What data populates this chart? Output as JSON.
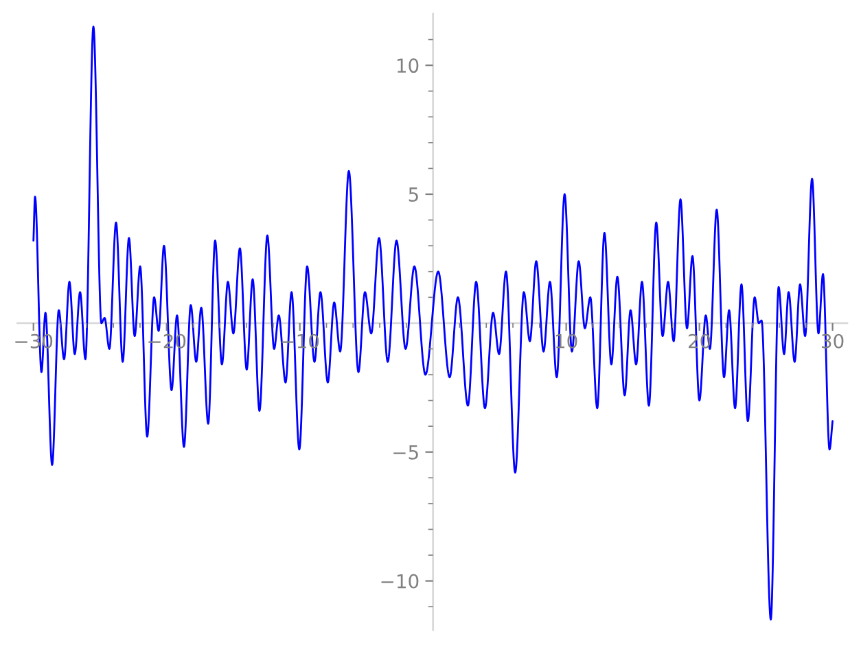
{
  "chart_data": {
    "type": "line",
    "color": "#0000ff",
    "line_style": "solid",
    "marker": "none",
    "grid": false,
    "legend": false,
    "x": [
      -30.0,
      -29.88,
      -29.4,
      -29.1,
      -28.6,
      -28.1,
      -27.7,
      -27.3,
      -26.9,
      -26.5,
      -26.1,
      -25.5,
      -24.9,
      -24.66,
      -24.3,
      -23.8,
      -23.3,
      -22.83,
      -22.4,
      -21.99,
      -21.46,
      -20.94,
      -20.6,
      -20.2,
      -19.63,
      -19.22,
      -18.7,
      -18.19,
      -17.78,
      -17.4,
      -16.88,
      -16.36,
      -15.85,
      -15.4,
      -14.99,
      -14.5,
      -13.99,
      -13.54,
      -13.03,
      -12.44,
      -11.93,
      -11.58,
      -11.07,
      -10.62,
      -10.04,
      -9.45,
      -8.9,
      -8.45,
      -7.9,
      -7.42,
      -6.97,
      -6.32,
      -5.6,
      -5.11,
      -4.64,
      -4.05,
      -3.4,
      -2.74,
      -2.06,
      -1.4,
      -0.57,
      0.39,
      1.25,
      1.87,
      2.62,
      3.24,
      3.9,
      4.51,
      4.96,
      5.48,
      6.17,
      6.82,
      7.27,
      7.75,
      8.3,
      8.78,
      9.29,
      9.88,
      10.43,
      10.94,
      11.4,
      11.81,
      12.33,
      12.87,
      13.39,
      13.84,
      14.39,
      14.83,
      15.25,
      15.69,
      16.21,
      16.76,
      17.24,
      17.65,
      18.07,
      18.58,
      19.07,
      19.48,
      20.0,
      20.48,
      20.79,
      21.3,
      21.85,
      22.23,
      22.68,
      23.16,
      23.64,
      24.15,
      24.46,
      24.67,
      25.36,
      25.95,
      26.36,
      26.7,
      27.15,
      27.56,
      27.94,
      28.46,
      28.94,
      29.28,
      29.77,
      30.0
    ],
    "values": [
      3.2,
      4.9,
      -1.9,
      0.4,
      -5.5,
      0.5,
      -1.4,
      1.6,
      -1.2,
      1.2,
      -1.4,
      11.5,
      0.0,
      0.2,
      -1.0,
      3.9,
      -1.5,
      3.3,
      -0.5,
      2.2,
      -4.4,
      1.0,
      -0.3,
      3.0,
      -2.6,
      0.3,
      -4.8,
      0.7,
      -1.5,
      0.6,
      -3.9,
      3.2,
      -1.6,
      1.6,
      -0.4,
      2.9,
      -1.8,
      1.7,
      -3.4,
      3.4,
      -1.0,
      0.3,
      -2.3,
      1.2,
      -4.9,
      2.2,
      -1.5,
      1.2,
      -2.3,
      0.8,
      -1.1,
      5.9,
      -1.9,
      1.2,
      -0.4,
      3.3,
      -1.5,
      3.2,
      -1.0,
      2.2,
      -2.0,
      2.0,
      -2.1,
      1.0,
      -3.2,
      1.6,
      -3.3,
      0.4,
      -1.2,
      2.0,
      -5.8,
      1.2,
      -0.7,
      2.4,
      -1.1,
      1.6,
      -2.1,
      5.0,
      -1.1,
      2.4,
      -0.2,
      1.0,
      -3.3,
      3.5,
      -1.6,
      1.8,
      -2.8,
      0.5,
      -1.6,
      1.6,
      -3.2,
      3.9,
      -0.5,
      1.6,
      -0.7,
      4.8,
      -0.2,
      2.6,
      -3.0,
      0.3,
      -1.0,
      4.4,
      -2.1,
      0.5,
      -3.3,
      1.5,
      -3.8,
      1.0,
      0.0,
      0.1,
      -11.5,
      1.4,
      -1.2,
      1.2,
      -1.5,
      1.5,
      -0.5,
      5.6,
      -0.4,
      1.9,
      -4.9,
      -3.8
    ],
    "xlim": [
      -31.2,
      31.1
    ],
    "ylim": [
      -11.9,
      12.0
    ],
    "xticks": [
      {
        "value": -30,
        "label": "−30"
      },
      {
        "value": -28,
        "label": null
      },
      {
        "value": -26,
        "label": null
      },
      {
        "value": -24,
        "label": null
      },
      {
        "value": -22,
        "label": null
      },
      {
        "value": -20,
        "label": "−20"
      },
      {
        "value": -18,
        "label": null
      },
      {
        "value": -16,
        "label": null
      },
      {
        "value": -14,
        "label": null
      },
      {
        "value": -12,
        "label": null
      },
      {
        "value": -10,
        "label": "−10"
      },
      {
        "value": -8,
        "label": null
      },
      {
        "value": -6,
        "label": null
      },
      {
        "value": -4,
        "label": null
      },
      {
        "value": -2,
        "label": null
      },
      {
        "value": 2,
        "label": null
      },
      {
        "value": 4,
        "label": null
      },
      {
        "value": 6,
        "label": null
      },
      {
        "value": 8,
        "label": null
      },
      10,
      {
        "value": 12,
        "label": null
      },
      {
        "value": 14,
        "label": null
      },
      {
        "value": 16,
        "label": null
      },
      {
        "value": 18,
        "label": null
      },
      20,
      {
        "value": 22,
        "label": null
      },
      {
        "value": 24,
        "label": null
      },
      {
        "value": 26,
        "label": null
      },
      {
        "value": 28,
        "label": null
      },
      30
    ],
    "yticks": [
      {
        "value": -11,
        "label": null
      },
      {
        "value": -10,
        "label": "−10"
      },
      {
        "value": -9,
        "label": null
      },
      {
        "value": -8,
        "label": null
      },
      {
        "value": -7,
        "label": null
      },
      {
        "value": -6,
        "label": null
      },
      {
        "value": -5,
        "label": "−5"
      },
      {
        "value": -4,
        "label": null
      },
      {
        "value": -3,
        "label": null
      },
      {
        "value": -2,
        "label": null
      },
      {
        "value": -1,
        "label": null
      },
      {
        "value": 1,
        "label": null
      },
      {
        "value": 2,
        "label": null
      },
      {
        "value": 3,
        "label": null
      },
      {
        "value": 4,
        "label": null
      },
      5,
      {
        "value": 6,
        "label": null
      },
      {
        "value": 7,
        "label": null
      },
      {
        "value": 8,
        "label": null
      },
      {
        "value": 9,
        "label": null
      },
      10,
      {
        "value": 11,
        "label": null
      }
    ]
  }
}
